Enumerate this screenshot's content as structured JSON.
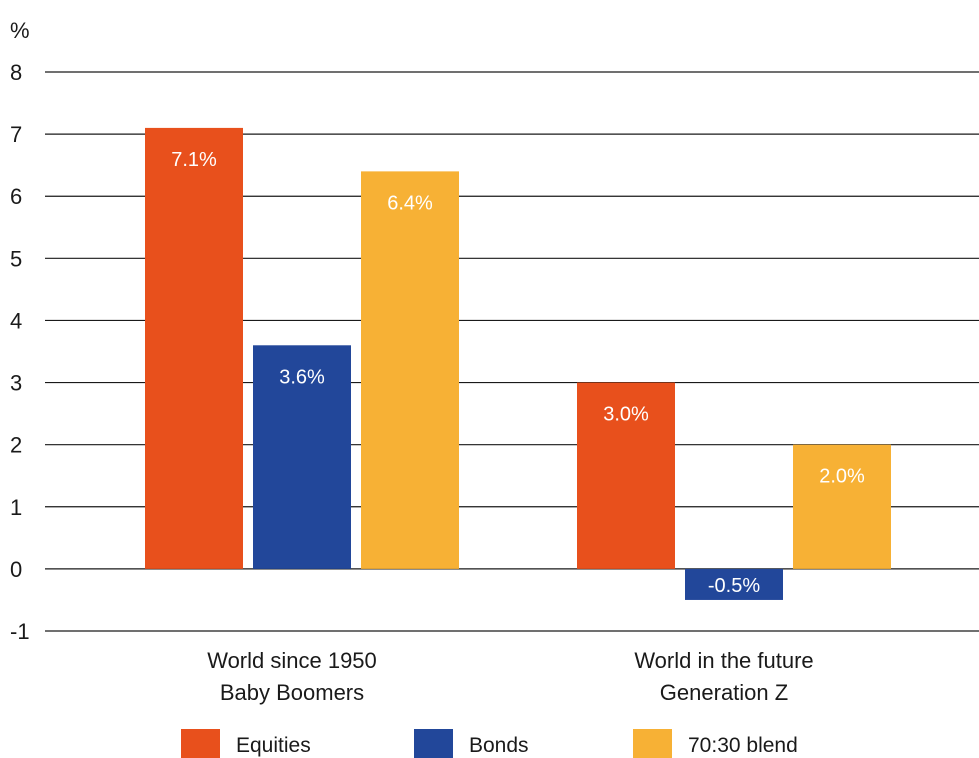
{
  "chart_data": {
    "type": "bar",
    "ylabel": "%",
    "ylim": [
      -1,
      8
    ],
    "yticks": [
      -1,
      0,
      1,
      2,
      3,
      4,
      5,
      6,
      7,
      8
    ],
    "grid": true,
    "legend_position": "bottom",
    "categories": [
      [
        "World since 1950",
        "Baby Boomers"
      ],
      [
        "World in the future",
        "Generation Z"
      ]
    ],
    "series": [
      {
        "name": "Equities",
        "color": "#e8501c",
        "values": [
          7.1,
          3.0
        ],
        "labels": [
          "7.1%",
          "3.0%"
        ]
      },
      {
        "name": "Bonds",
        "color": "#22479a",
        "values": [
          3.6,
          -0.5
        ],
        "labels": [
          "3.6%",
          "-0.5%"
        ]
      },
      {
        "name": "70:30 blend",
        "color": "#f7b135",
        "values": [
          6.4,
          2.0
        ],
        "labels": [
          "6.4%",
          "2.0%"
        ]
      }
    ]
  }
}
